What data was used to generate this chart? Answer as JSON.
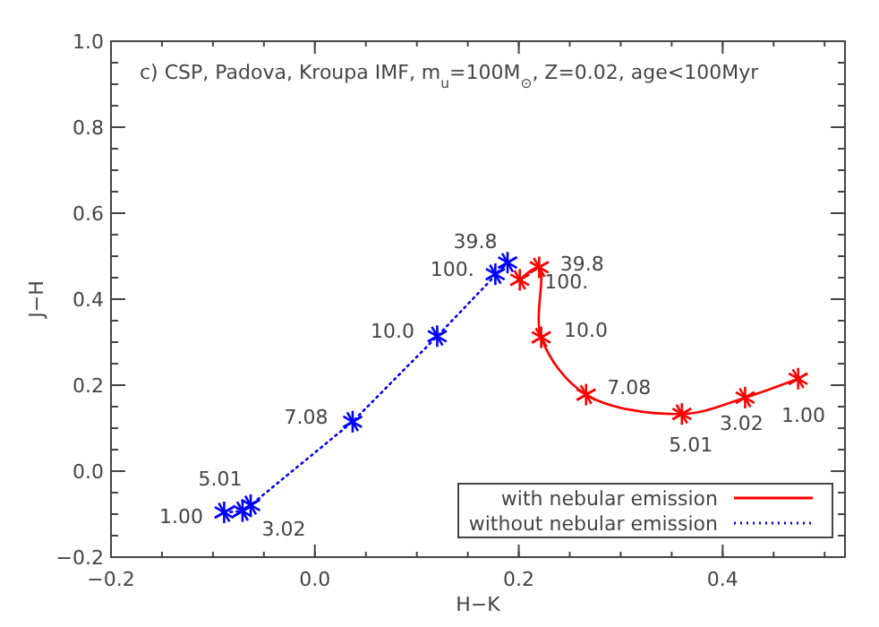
{
  "chart_data": {
    "type": "line",
    "title": "c) CSP, Padova, Kroupa IMF, m$_{u}$=100M$_{⊙}$, Z=0.02, age<100Myr",
    "xlabel": "H−K",
    "ylabel": "J−H",
    "xlim": [
      -0.2,
      0.52
    ],
    "xticks": [
      {
        "value": -0.2,
        "label": "−0.2"
      },
      {
        "value": 0,
        "label": "0.0"
      },
      {
        "value": 0.2,
        "label": "0.2"
      },
      {
        "value": 0.4,
        "label": "0.4"
      }
    ],
    "ylim": [
      -0.2,
      1.0
    ],
    "yticks": [
      {
        "value": -0.2,
        "label": "−0.2"
      },
      {
        "value": 0,
        "label": "0.0"
      },
      {
        "value": 0.2,
        "label": "0.2"
      },
      {
        "value": 0.4,
        "label": "0.4"
      },
      {
        "value": 0.6,
        "label": "0.6"
      },
      {
        "value": 0.8,
        "label": "0.8"
      },
      {
        "value": 1.0,
        "label": "1.0"
      }
    ],
    "grid": false,
    "legend": "bottom right",
    "marker": "cross",
    "series": [
      {
        "name": "with nebular emission",
        "color": "#ff0000",
        "line_style": "solid",
        "x": [
          0.474,
          0.422,
          0.36,
          0.266,
          0.222,
          0.22,
          0.201
        ],
        "values": [
          0.215,
          0.171,
          0.133,
          0.178,
          0.311,
          0.474,
          0.445
        ]
      },
      {
        "name": "without nebular emission",
        "color": "#0000ff",
        "line_style": "dotted",
        "x": [
          -0.089,
          -0.071,
          -0.063,
          0.037,
          0.12,
          0.189,
          0.177
        ],
        "values": [
          -0.096,
          -0.093,
          -0.079,
          0.115,
          0.314,
          0.485,
          0.458
        ]
      }
    ],
    "annotations": [
      {
        "text": "1.00",
        "x": 0.474,
        "y": 0.215
      },
      {
        "text": "3.02",
        "x": 0.422,
        "y": 0.171
      },
      {
        "text": "5.01",
        "x": 0.36,
        "y": 0.133
      },
      {
        "text": "7.08",
        "x": 0.266,
        "y": 0.178
      },
      {
        "text": "10.0",
        "x": 0.222,
        "y": 0.311
      },
      {
        "text": "39.8",
        "x": 0.22,
        "y": 0.474
      },
      {
        "text": "100.",
        "x": 0.201,
        "y": 0.445
      },
      {
        "text": "1.00",
        "x": -0.089,
        "y": -0.096
      },
      {
        "text": "3.02",
        "x": -0.071,
        "y": -0.093
      },
      {
        "text": "5.01",
        "x": -0.063,
        "y": -0.079
      },
      {
        "text": "7.08",
        "x": 0.037,
        "y": 0.115
      },
      {
        "text": "10.0",
        "x": 0.12,
        "y": 0.314
      },
      {
        "text": "39.8",
        "x": 0.189,
        "y": 0.485
      },
      {
        "text": "100.",
        "x": 0.177,
        "y": 0.458
      }
    ]
  }
}
